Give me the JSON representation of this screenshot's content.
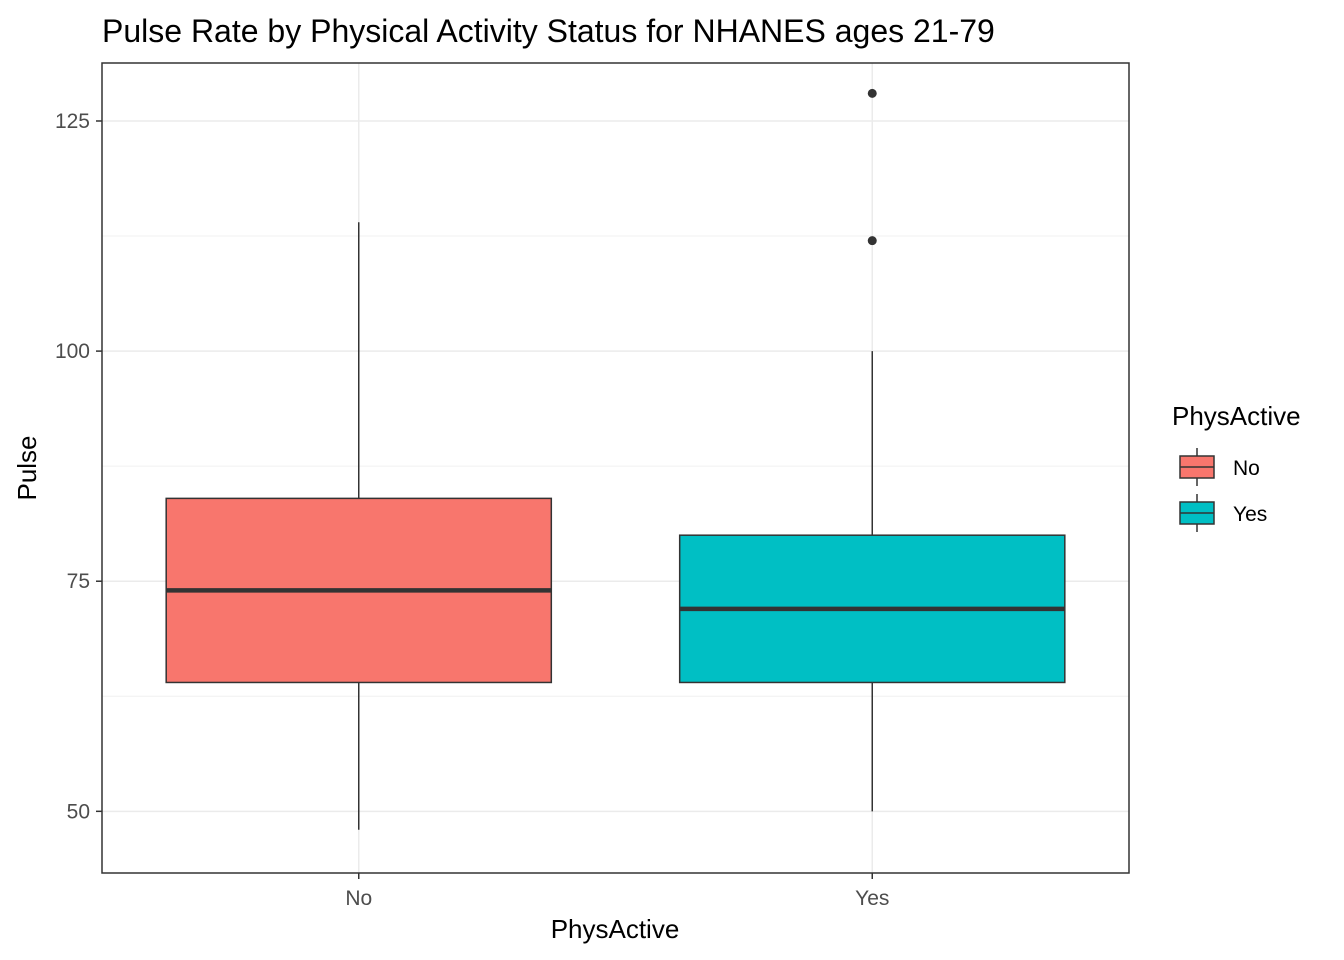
{
  "chart_data": {
    "type": "boxplot",
    "title": "Pulse Rate by Physical Activity Status for NHANES ages 21-79",
    "xlabel": "PhysActive",
    "ylabel": "Pulse",
    "categories": [
      "No",
      "Yes"
    ],
    "ylim": [
      43.3,
      131.3
    ],
    "y_ticks": [
      50,
      75,
      100,
      125
    ],
    "y_tick_labels": [
      "50",
      "75",
      "100",
      "125"
    ],
    "grid": true,
    "legend": {
      "title": "PhysActive",
      "placement": "right",
      "entries": [
        {
          "label": "No",
          "color": "#F8766D"
        },
        {
          "label": "Yes",
          "color": "#00BFC4"
        }
      ]
    },
    "series": [
      {
        "category": "No",
        "color": "#F8766D",
        "whisker_low": 48,
        "q1": 64,
        "median": 74,
        "q3": 84,
        "whisker_high": 114,
        "outliers": []
      },
      {
        "category": "Yes",
        "color": "#00BFC4",
        "whisker_low": 50,
        "q1": 64,
        "median": 72,
        "q3": 80,
        "whisker_high": 100,
        "outliers": [
          112,
          128
        ]
      }
    ]
  }
}
